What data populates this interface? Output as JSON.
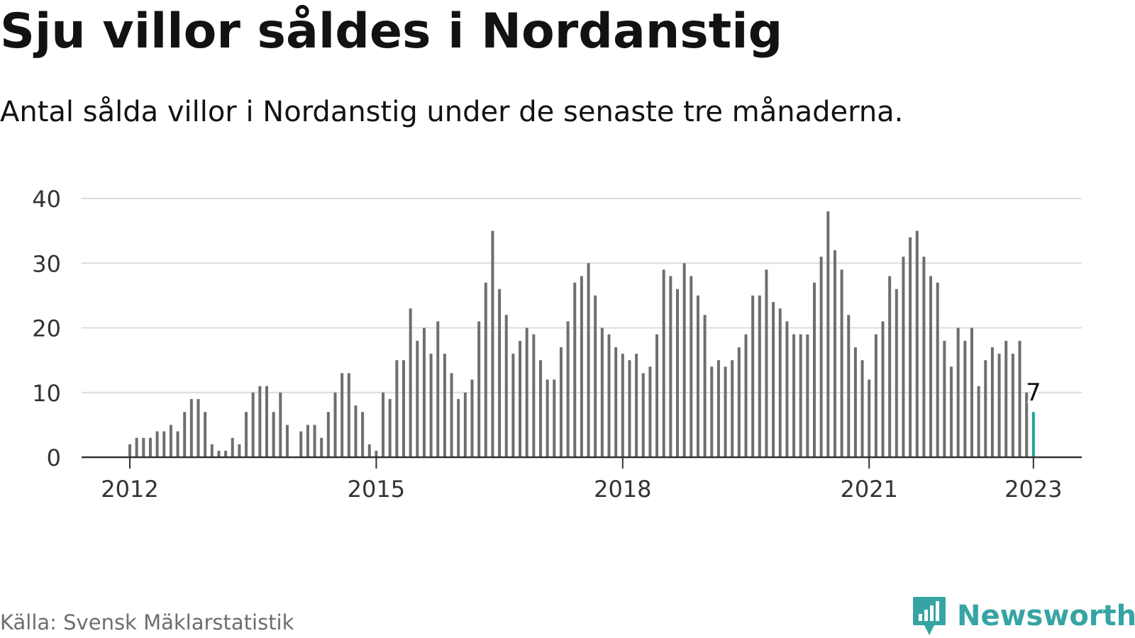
{
  "title": "Sju villor såldes i Nordanstig",
  "subtitle": "Antal sålda villor i Nordanstig under de senaste tre månaderna.",
  "source": "Källa: Svensk Mäklarstatistik",
  "brand": "Newsworthy",
  "colors": {
    "bar": "#6e6e6e",
    "highlight": "#22a29a",
    "grid": "#dcdcdc",
    "axis": "#333333",
    "brand": "#37a4a4"
  },
  "chart_data": {
    "type": "bar",
    "title": "Sju villor såldes i Nordanstig",
    "subtitle": "Antal sålda villor i Nordanstig under de senaste tre månaderna.",
    "xlabel": "",
    "ylabel": "",
    "ylim": [
      0,
      40
    ],
    "yticks": [
      "0",
      "10",
      "20",
      "30",
      "40"
    ],
    "xticks": [
      {
        "label": "2012",
        "index": 0
      },
      {
        "label": "2015",
        "index": 36
      },
      {
        "label": "2018",
        "index": 72
      },
      {
        "label": "2021",
        "index": 108
      },
      {
        "label": "2023",
        "index": 132
      }
    ],
    "first_period": "2012-01",
    "last_period": "2023-01",
    "grid": true,
    "highlight_label": "7",
    "values": [
      2,
      3,
      3,
      3,
      4,
      4,
      5,
      4,
      7,
      9,
      9,
      7,
      2,
      1,
      1,
      3,
      2,
      7,
      10,
      11,
      11,
      7,
      10,
      5,
      0,
      4,
      5,
      5,
      3,
      7,
      10,
      13,
      13,
      8,
      7,
      2,
      1,
      10,
      9,
      15,
      15,
      23,
      18,
      20,
      16,
      21,
      16,
      13,
      9,
      10,
      12,
      21,
      27,
      35,
      26,
      22,
      16,
      18,
      20,
      19,
      15,
      12,
      12,
      17,
      21,
      27,
      28,
      30,
      25,
      20,
      19,
      17,
      16,
      15,
      16,
      13,
      14,
      19,
      29,
      28,
      26,
      30,
      28,
      25,
      22,
      14,
      15,
      14,
      15,
      17,
      19,
      25,
      25,
      29,
      24,
      23,
      21,
      19,
      19,
      19,
      27,
      31,
      38,
      32,
      29,
      22,
      17,
      15,
      12,
      19,
      21,
      28,
      26,
      31,
      34,
      35,
      31,
      28,
      27,
      18,
      14,
      20,
      18,
      20,
      11,
      15,
      17,
      16,
      18,
      16,
      18,
      10,
      7
    ]
  }
}
